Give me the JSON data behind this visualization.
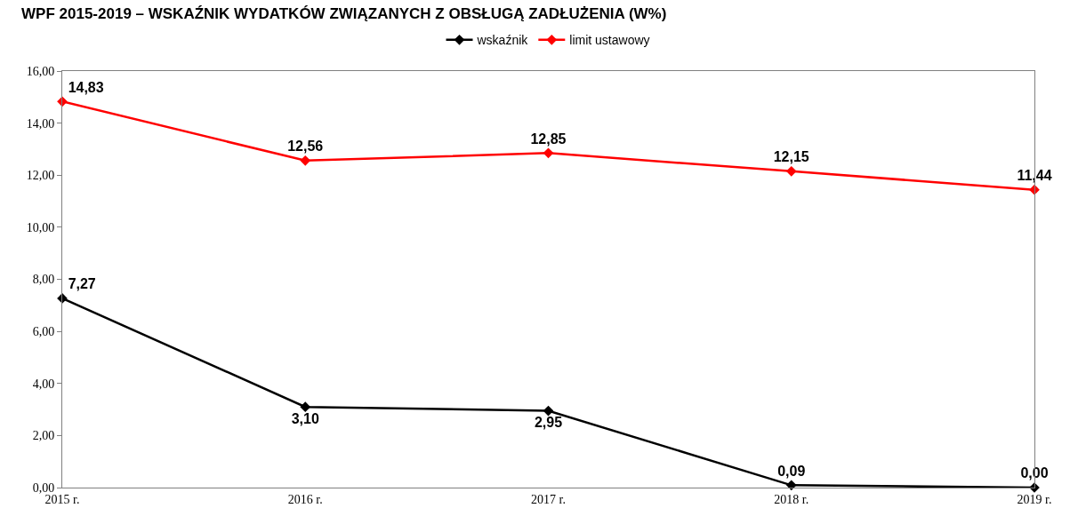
{
  "chart_data": {
    "type": "line",
    "title": "WPF 2015-2019 – WSKAŹNIK WYDATKÓW ZWIĄZANYCH Z OBSŁUGĄ ZADŁUŻENIA (W%)",
    "categories": [
      "2015 r.",
      "2016 r.",
      "2017 r.",
      "2018 r.",
      "2019 r."
    ],
    "series": [
      {
        "name": "wskaźnik",
        "color": "#000000",
        "values": [
          7.27,
          3.1,
          2.95,
          0.09,
          0.0
        ],
        "value_labels": [
          "7,27",
          "3,10",
          "2,95",
          "0,09",
          "0,00"
        ]
      },
      {
        "name": "limit ustawowy",
        "color": "#ff0000",
        "values": [
          14.83,
          12.56,
          12.85,
          12.15,
          11.44
        ],
        "value_labels": [
          "14,83",
          "12,56",
          "12,85",
          "12,15",
          "11,44"
        ]
      }
    ],
    "ylim": [
      0,
      16
    ],
    "yticks": [
      {
        "value": 0,
        "label": "0,00"
      },
      {
        "value": 2,
        "label": "2,00"
      },
      {
        "value": 4,
        "label": "4,00"
      },
      {
        "value": 6,
        "label": "6,00"
      },
      {
        "value": 8,
        "label": "8,00"
      },
      {
        "value": 10,
        "label": "10,00"
      },
      {
        "value": 12,
        "label": "12,00"
      },
      {
        "value": 14,
        "label": "14,00"
      },
      {
        "value": 16,
        "label": "16,00"
      }
    ],
    "legend": "top",
    "marker": "diamond",
    "line_style": "solid"
  }
}
